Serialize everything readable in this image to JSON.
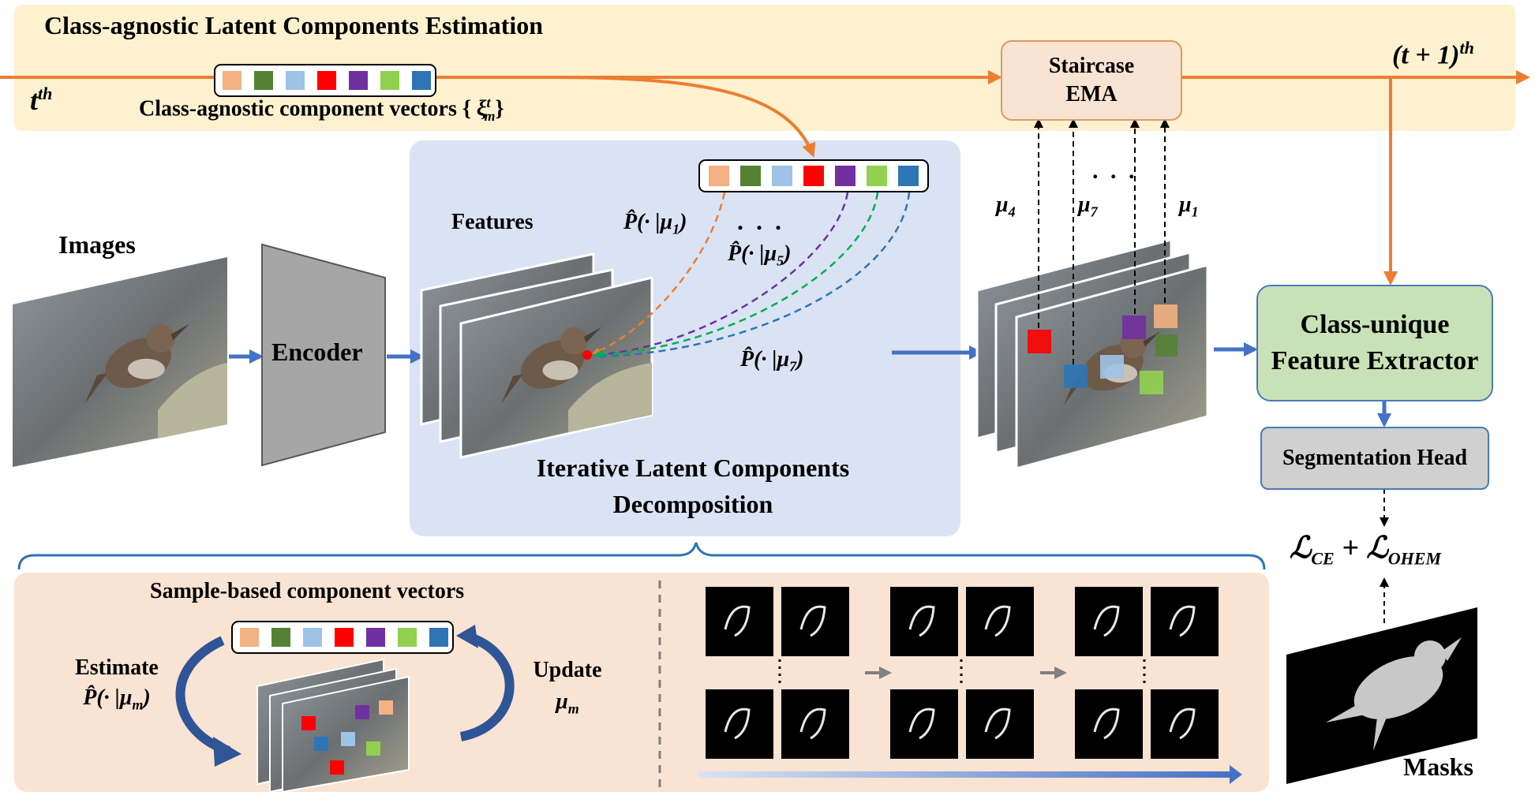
{
  "colors": {
    "band": "#fdf1cf",
    "panel_blue": "#dae3f4",
    "panel_peach": "#f9e3d3",
    "arrow_orange": "#ed7d31",
    "arrow_blue": "#4472c4",
    "components": [
      "#f4b183",
      "#548235",
      "#9dc3e6",
      "#ff0000",
      "#7030a0",
      "#92d050",
      "#2e75b6"
    ]
  },
  "top": {
    "title": "Class-agnostic Latent Components Estimation",
    "t_label": "t",
    "t_sup": "th",
    "t1_label": "(t + 1)",
    "t1_sup": "th",
    "vectors_label": "Class-agnostic component vectors  { ",
    "xi": "ξ",
    "xi_sup": "t",
    "xi_sub": "m",
    "vectors_close": "}",
    "ema_line1": "Staircase",
    "ema_line2": "EMA"
  },
  "left": {
    "images_label": "Images",
    "encoder_label": "Encoder"
  },
  "center": {
    "features_label": "Features",
    "p_mu1": "P̂(· |μ",
    "p_mu1_sub": "1",
    "p_mu1_close": ")",
    "p_mu5": "P̂(· |μ",
    "p_mu5_sub": "5",
    "p_mu5_close": ")",
    "p_mu7": "P̂(· |μ",
    "p_mu7_sub": "7",
    "p_mu7_close": ")",
    "dots": ". . .",
    "title_line1": "Iterative Latent Components",
    "title_line2": "Decomposition"
  },
  "right": {
    "mu4": "μ",
    "mu4_sub": "4",
    "mu7": "μ",
    "mu7_sub": "7",
    "mu1": "μ",
    "mu1_sub": "1",
    "dots": ". . .",
    "extractor_line1": "Class-unique",
    "extractor_line2": "Feature Extractor",
    "seg_head": "Segmentation Head",
    "loss_l1": "ℒ",
    "loss_sub1": "CE",
    "loss_plus": " + ℒ",
    "loss_sub2": "OHEM",
    "masks_label": "Masks"
  },
  "bottom": {
    "sample_label": "Sample-based component vectors",
    "estimate_line1": "Estimate",
    "estimate_line2": "P̂(· |μ",
    "estimate_sub": "m",
    "estimate_close": ")",
    "update_line1": "Update",
    "update_mu": "μ",
    "update_sub": "m"
  }
}
